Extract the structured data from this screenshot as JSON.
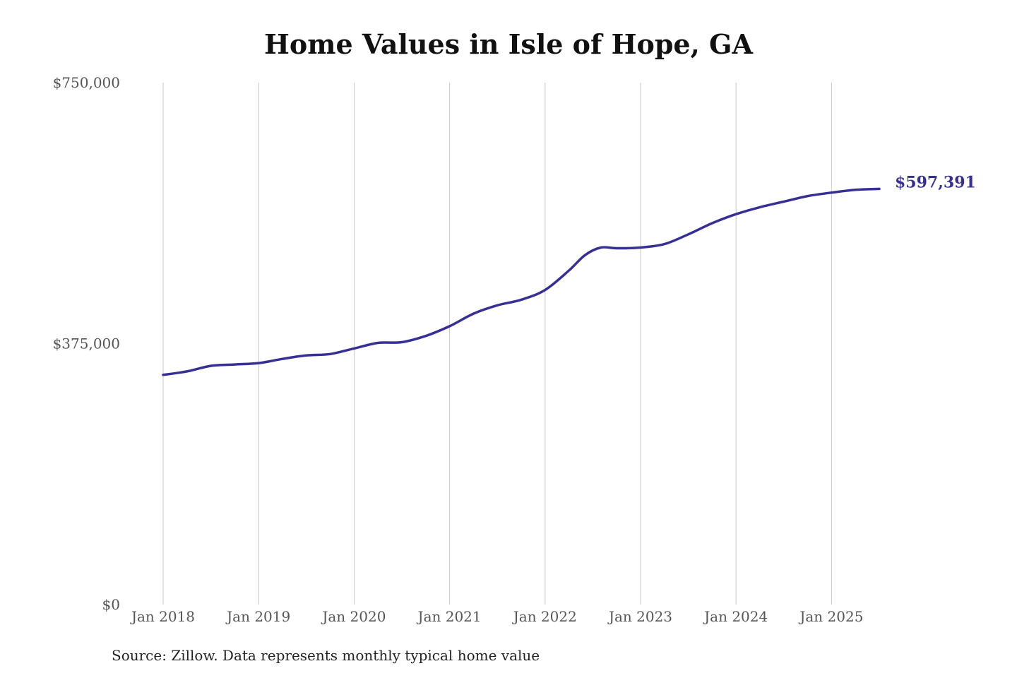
{
  "chart_data": {
    "type": "line",
    "title": "Home Values in Isle of Hope, GA",
    "source": "Source: Zillow. Data represents monthly typical home value",
    "ylim": [
      0,
      750000
    ],
    "y_ticks": [
      {
        "value": 0,
        "label": "$0"
      },
      {
        "value": 375000,
        "label": "$375,000"
      },
      {
        "value": 750000,
        "label": "$750,000"
      }
    ],
    "x_ticks": [
      {
        "value": "2018-01",
        "label": "Jan 2018"
      },
      {
        "value": "2019-01",
        "label": "Jan 2019"
      },
      {
        "value": "2020-01",
        "label": "Jan 2020"
      },
      {
        "value": "2021-01",
        "label": "Jan 2021"
      },
      {
        "value": "2022-01",
        "label": "Jan 2022"
      },
      {
        "value": "2023-01",
        "label": "Jan 2023"
      },
      {
        "value": "2024-01",
        "label": "Jan 2024"
      },
      {
        "value": "2025-01",
        "label": "Jan 2025"
      }
    ],
    "xlim": [
      "2018-01",
      "2025-07"
    ],
    "grid": {
      "vertical": true,
      "horizontal": false
    },
    "line_color": "#352F96",
    "end_label": "$597,391",
    "series": [
      {
        "points": [
          [
            "2018-01",
            330000
          ],
          [
            "2018-04",
            335000
          ],
          [
            "2018-07",
            343000
          ],
          [
            "2018-10",
            345000
          ],
          [
            "2019-01",
            347000
          ],
          [
            "2019-04",
            353000
          ],
          [
            "2019-07",
            358000
          ],
          [
            "2019-10",
            360000
          ],
          [
            "2020-01",
            368000
          ],
          [
            "2020-04",
            376000
          ],
          [
            "2020-07",
            377000
          ],
          [
            "2020-10",
            386000
          ],
          [
            "2021-01",
            400000
          ],
          [
            "2021-04",
            418000
          ],
          [
            "2021-07",
            430000
          ],
          [
            "2021-10",
            438000
          ],
          [
            "2022-01",
            452000
          ],
          [
            "2022-04",
            480000
          ],
          [
            "2022-06",
            502000
          ],
          [
            "2022-08",
            513000
          ],
          [
            "2022-10",
            512000
          ],
          [
            "2023-01",
            513000
          ],
          [
            "2023-04",
            518000
          ],
          [
            "2023-07",
            532000
          ],
          [
            "2023-10",
            548000
          ],
          [
            "2024-01",
            561000
          ],
          [
            "2024-04",
            571000
          ],
          [
            "2024-07",
            579000
          ],
          [
            "2024-10",
            587000
          ],
          [
            "2025-01",
            592000
          ],
          [
            "2025-04",
            596000
          ],
          [
            "2025-07",
            597391
          ]
        ]
      }
    ]
  }
}
